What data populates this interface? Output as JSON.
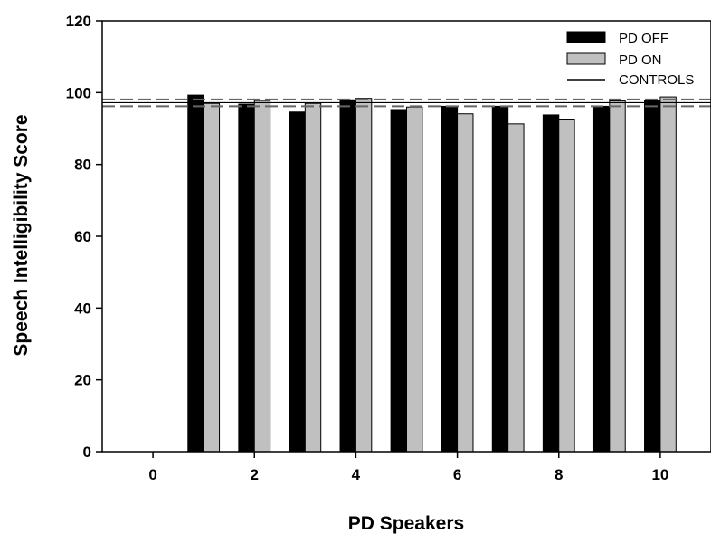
{
  "chart_data": {
    "type": "bar",
    "title": "",
    "xlabel": "PD Speakers",
    "ylabel": "Speech Intelligibility Score",
    "xlim": [
      -1,
      11
    ],
    "ylim": [
      0,
      120
    ],
    "x_ticks": [
      0,
      2,
      4,
      6,
      8,
      10
    ],
    "y_ticks": [
      0,
      20,
      40,
      60,
      80,
      100,
      120
    ],
    "x": [
      1,
      2,
      3,
      4,
      5,
      6,
      7,
      8,
      9,
      10
    ],
    "series": [
      {
        "name": "PD OFF",
        "color": "#000000",
        "values": [
          99.3,
          96.8,
          94.6,
          98.0,
          95.3,
          96.2,
          96.2,
          93.8,
          96.2,
          97.7
        ]
      },
      {
        "name": "PD ON",
        "color": "#c0c0c0",
        "values": [
          97.0,
          97.8,
          97.0,
          98.4,
          96.0,
          94.1,
          91.3,
          92.4,
          97.7,
          98.8
        ]
      }
    ],
    "controls": {
      "name": "CONTROLS",
      "mean": 97.2,
      "band": [
        96.2,
        98.1
      ]
    },
    "grid": false,
    "legend_position": "top-right"
  }
}
